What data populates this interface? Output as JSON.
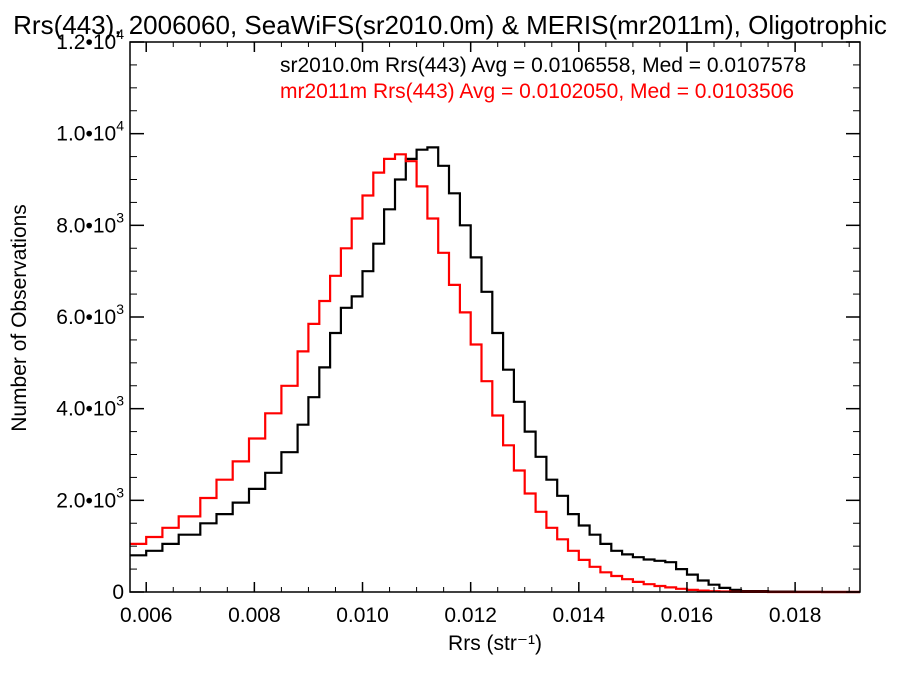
{
  "chart_data": {
    "type": "line",
    "title": "Rrs(443), 2006060, SeaWiFS(sr2010.0m) & MERIS(mr2011m), Oligotrophic",
    "xlabel": "Rrs (str⁻¹)",
    "ylabel": "Number of Observations",
    "xlim": [
      0.0057,
      0.0192
    ],
    "ylim": [
      0,
      12000
    ],
    "grid": false,
    "legend_position": "top-right",
    "x_ticks": [
      0.006,
      0.008,
      0.01,
      0.012,
      0.014,
      0.016,
      0.018
    ],
    "x_tick_labels": [
      "0.006",
      "0.008",
      "0.010",
      "0.012",
      "0.014",
      "0.016",
      "0.018"
    ],
    "y_ticks": [
      {
        "value": 0,
        "mantissa": "0",
        "exponent": ""
      },
      {
        "value": 2000,
        "mantissa": "2.0•10",
        "exponent": "3"
      },
      {
        "value": 4000,
        "mantissa": "4.0•10",
        "exponent": "3"
      },
      {
        "value": 6000,
        "mantissa": "6.0•10",
        "exponent": "3"
      },
      {
        "value": 8000,
        "mantissa": "8.0•10",
        "exponent": "3"
      },
      {
        "value": 10000,
        "mantissa": "1.0•10",
        "exponent": "4"
      },
      {
        "value": 12000,
        "mantissa": "1.2•10",
        "exponent": "4"
      }
    ],
    "series": [
      {
        "name": "sr2010.0m",
        "legend_text": "sr2010.0m Rrs(443) Avg = 0.0106558, Med = 0.0107578",
        "color": "#000000",
        "x": [
          0.0057,
          0.006,
          0.0063,
          0.0066,
          0.007,
          0.0073,
          0.0076,
          0.0079,
          0.0082,
          0.0085,
          0.0088,
          0.009,
          0.0092,
          0.0094,
          0.0096,
          0.0098,
          0.01,
          0.0102,
          0.0104,
          0.0106,
          0.0108,
          0.011,
          0.0112,
          0.0114,
          0.0116,
          0.0118,
          0.012,
          0.0122,
          0.0124,
          0.0126,
          0.0128,
          0.013,
          0.0132,
          0.0134,
          0.0136,
          0.0138,
          0.014,
          0.0142,
          0.0144,
          0.0146,
          0.0148,
          0.015,
          0.0152,
          0.0154,
          0.0156,
          0.0158,
          0.016,
          0.0162,
          0.0164,
          0.0166,
          0.0168,
          0.017,
          0.0175,
          0.018,
          0.0185,
          0.0192
        ],
        "y": [
          800,
          900,
          1050,
          1250,
          1500,
          1700,
          1950,
          2250,
          2600,
          3050,
          3650,
          4250,
          4900,
          5650,
          6200,
          6450,
          7000,
          7600,
          8350,
          9000,
          9450,
          9650,
          9700,
          9300,
          8700,
          8000,
          7300,
          6550,
          5650,
          4850,
          4150,
          3500,
          2950,
          2450,
          2100,
          1700,
          1450,
          1250,
          1050,
          900,
          820,
          760,
          710,
          680,
          650,
          500,
          380,
          250,
          160,
          90,
          45,
          20,
          8,
          3,
          0,
          0
        ]
      },
      {
        "name": "mr2011m",
        "legend_text": "mr2011m Rrs(443) Avg = 0.0102050, Med = 0.0103506",
        "color": "#ff0000",
        "x": [
          0.0057,
          0.006,
          0.0063,
          0.0066,
          0.007,
          0.0073,
          0.0076,
          0.0079,
          0.0082,
          0.0085,
          0.0088,
          0.009,
          0.0092,
          0.0094,
          0.0096,
          0.0098,
          0.01,
          0.0102,
          0.0104,
          0.0106,
          0.0108,
          0.011,
          0.0112,
          0.0114,
          0.0116,
          0.0118,
          0.012,
          0.0122,
          0.0124,
          0.0126,
          0.0128,
          0.013,
          0.0132,
          0.0134,
          0.0136,
          0.0138,
          0.014,
          0.0142,
          0.0144,
          0.0146,
          0.0148,
          0.015,
          0.0152,
          0.0154,
          0.0156,
          0.0158,
          0.016,
          0.0162,
          0.0164,
          0.0166,
          0.0168,
          0.017,
          0.0175,
          0.018,
          0.0185,
          0.0192
        ],
        "y": [
          1050,
          1200,
          1400,
          1650,
          2050,
          2450,
          2850,
          3350,
          3900,
          4500,
          5250,
          5850,
          6350,
          6900,
          7500,
          8150,
          8650,
          9150,
          9450,
          9550,
          9400,
          8850,
          8150,
          7400,
          6700,
          6100,
          5400,
          4600,
          3850,
          3200,
          2650,
          2150,
          1750,
          1400,
          1150,
          900,
          700,
          550,
          430,
          350,
          280,
          220,
          170,
          130,
          100,
          70,
          45,
          30,
          18,
          10,
          5,
          3,
          1,
          0,
          0,
          0
        ]
      }
    ]
  }
}
